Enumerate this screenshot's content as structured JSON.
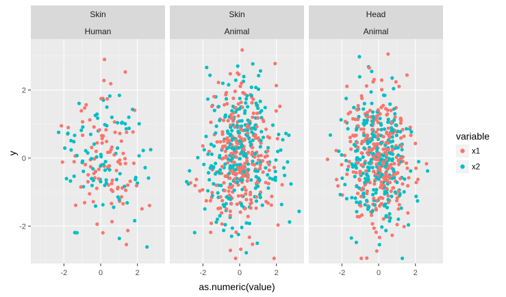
{
  "chart_data": {
    "type": "scatter",
    "xlabel": "as.numeric(value)",
    "ylabel": "y",
    "xlim": [
      -3.8,
      3.5
    ],
    "ylim": [
      -3.1,
      3.5
    ],
    "x_major_ticks": [
      -2,
      0,
      2
    ],
    "x_tick_labels": [
      "-2",
      "0",
      "2"
    ],
    "y_major_ticks": [
      -2,
      0,
      2
    ],
    "y_tick_labels": [
      "-2",
      "0",
      "2"
    ],
    "grid": true,
    "legend": {
      "title": "variable",
      "position": "right",
      "entries": [
        {
          "name": "x1",
          "color": "#F8766D"
        },
        {
          "name": "x2",
          "color": "#00BFC4"
        }
      ]
    },
    "facets": [
      {
        "strip_top": "Skin",
        "strip_bottom": "Human",
        "n_points": 180,
        "seed": 11,
        "x_sd": 1.0,
        "y_sd": 1.0,
        "x_mean": 0.2,
        "y_mean": 0.0
      },
      {
        "strip_top": "Skin",
        "strip_bottom": "Animal",
        "n_points": 560,
        "seed": 23,
        "x_sd": 0.95,
        "y_sd": 1.0,
        "x_mean": 0.0,
        "y_mean": 0.05
      },
      {
        "strip_top": "Head",
        "strip_bottom": "Animal",
        "n_points": 560,
        "seed": 37,
        "x_sd": 0.95,
        "y_sd": 1.05,
        "x_mean": 0.0,
        "y_mean": 0.0
      }
    ],
    "series": [
      {
        "name": "x1",
        "color": "#F8766D"
      },
      {
        "name": "x2",
        "color": "#00BFC4"
      }
    ]
  }
}
